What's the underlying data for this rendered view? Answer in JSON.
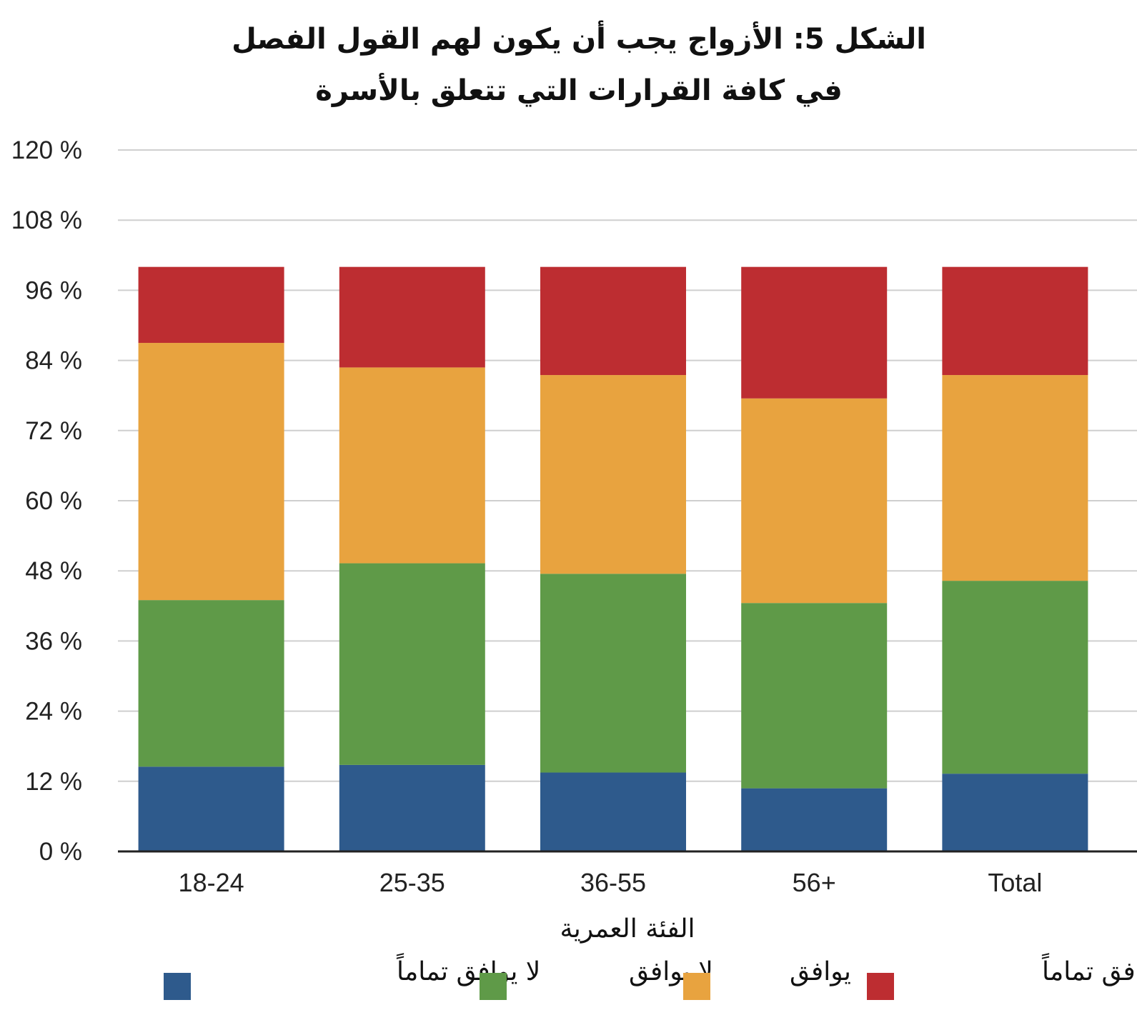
{
  "chart_data": {
    "type": "bar",
    "stacked": true,
    "title_lines": [
      "الشكل 5: الأزواج يجب أن يكون لهم القول الفصل",
      "في كافة القرارات التي تتعلق بالأسرة"
    ],
    "xlabel": "الفئة العمرية",
    "ylabel": "",
    "categories": [
      "18-24",
      "25-35",
      "36-55",
      "56+",
      "Total"
    ],
    "ylim": [
      0,
      120
    ],
    "yticks": [
      0,
      12,
      24,
      36,
      48,
      60,
      72,
      84,
      96,
      108,
      120
    ],
    "ytick_suffix": " %",
    "grid": true,
    "legend_position": "bottom",
    "series": [
      {
        "name": "لا يوافق تماماً",
        "color": "#2e5a8c",
        "values": [
          14.5,
          14.8,
          13.5,
          10.8,
          13.3
        ]
      },
      {
        "name": "لا يوافق",
        "color": "#5f9a48",
        "values": [
          28.5,
          34.5,
          34,
          31.7,
          33
        ]
      },
      {
        "name": "يوافق",
        "color": "#e8a33f",
        "values": [
          44,
          33.5,
          34,
          35,
          35.2
        ]
      },
      {
        "name": "يوافق تماماً",
        "color": "#bd2d31",
        "values": [
          13,
          17.2,
          18.5,
          22.5,
          18.5
        ]
      }
    ]
  }
}
